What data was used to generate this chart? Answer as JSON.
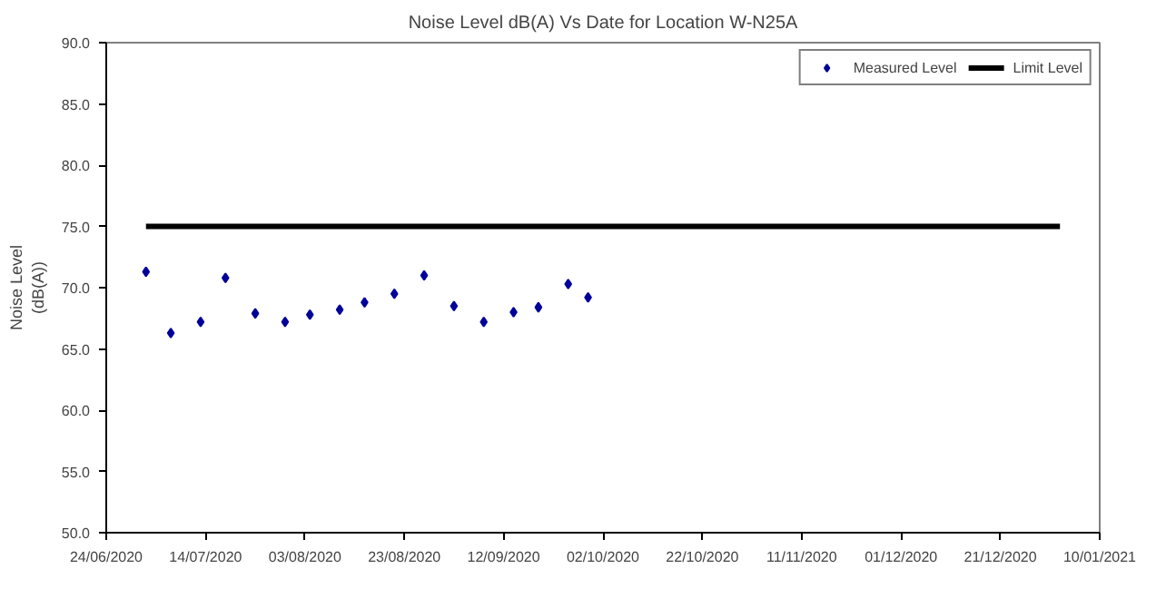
{
  "chart_data": {
    "type": "scatter",
    "title": "Noise Level dB(A) Vs Date for Location W-N25A",
    "ylabel": "Noise Level\n(dB(A))",
    "series": [
      {
        "name": "Measured Level",
        "color": "#000099",
        "marker": "diamond",
        "x": [
          "2020-07-02",
          "2020-07-07",
          "2020-07-13",
          "2020-07-18",
          "2020-07-24",
          "2020-07-30",
          "2020-08-04",
          "2020-08-10",
          "2020-08-15",
          "2020-08-21",
          "2020-08-27",
          "2020-09-02",
          "2020-09-08",
          "2020-09-14",
          "2020-09-19",
          "2020-09-25",
          "2020-09-29"
        ],
        "values": [
          71.3,
          66.3,
          67.2,
          70.8,
          67.9,
          67.2,
          67.8,
          68.2,
          68.8,
          69.5,
          71.0,
          68.5,
          67.2,
          68.0,
          68.4,
          70.3,
          69.2
        ]
      },
      {
        "name": "Limit Level",
        "type": "line",
        "color": "#000000",
        "marker": "none",
        "x": [
          "2020-07-02",
          "2021-01-02"
        ],
        "values": [
          75,
          75
        ]
      }
    ],
    "xlim": [
      "2020-06-24",
      "2021-01-10"
    ],
    "xticks": [
      {
        "value": "2020-06-24",
        "label": "24/06/2020"
      },
      {
        "value": "2020-07-14",
        "label": "14/07/2020"
      },
      {
        "value": "2020-08-03",
        "label": "03/08/2020"
      },
      {
        "value": "2020-08-23",
        "label": "23/08/2020"
      },
      {
        "value": "2020-09-12",
        "label": "12/09/2020"
      },
      {
        "value": "2020-10-02",
        "label": "02/10/2020"
      },
      {
        "value": "2020-10-22",
        "label": "22/10/2020"
      },
      {
        "value": "2020-11-11",
        "label": "11/11/2020"
      },
      {
        "value": "2020-12-01",
        "label": "01/12/2020"
      },
      {
        "value": "2020-12-21",
        "label": "21/12/2020"
      },
      {
        "value": "2021-01-10",
        "label": "10/01/2021"
      }
    ],
    "ylim": [
      50,
      90
    ],
    "yticks": [
      {
        "value": 50,
        "label": "50.0"
      },
      {
        "value": 55,
        "label": "55.0"
      },
      {
        "value": 60,
        "label": "60.0"
      },
      {
        "value": 65,
        "label": "65.0"
      },
      {
        "value": 70,
        "label": "70.0"
      },
      {
        "value": 75,
        "label": "75.0"
      },
      {
        "value": 80,
        "label": "80.0"
      },
      {
        "value": 85,
        "label": "85.0"
      },
      {
        "value": 90,
        "label": "90.0"
      }
    ],
    "grid": false,
    "legend": "top right"
  }
}
